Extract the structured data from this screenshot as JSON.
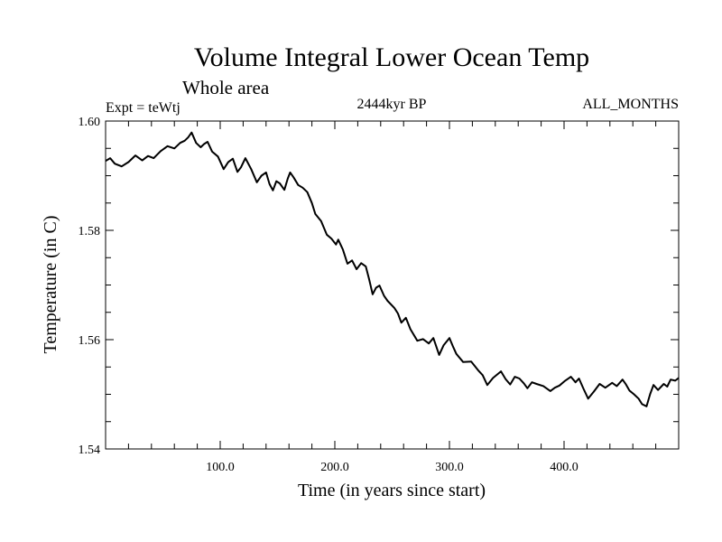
{
  "chart_data": {
    "type": "line",
    "title": "Volume Integral Lower Ocean Temp",
    "subtitle": "Whole area",
    "annotations": {
      "left": "Expt = teWtj",
      "center": "2444kyr BP",
      "right": "ALL_MONTHS"
    },
    "xlabel": "Time (in years since start)",
    "ylabel": "Temperature (in C)",
    "xlim": [
      0,
      500
    ],
    "ylim": [
      1.54,
      1.6
    ],
    "x_major_ticks": [
      100,
      200,
      300,
      400
    ],
    "x_tick_labels": [
      "100.0",
      "200.0",
      "300.0",
      "400.0"
    ],
    "x_minor_step": 20,
    "y_major_ticks": [
      1.54,
      1.56,
      1.58,
      1.6
    ],
    "y_tick_labels": [
      "1.54",
      "1.56",
      "1.58",
      "1.60"
    ],
    "y_minor_step": 0.005,
    "grid": false,
    "series": [
      {
        "name": "Lower Ocean Temp",
        "color": "#000000",
        "x": [
          0,
          4,
          8,
          14,
          20,
          26,
          32,
          37,
          42,
          48,
          54,
          60,
          65,
          69,
          72,
          75,
          79,
          83,
          86,
          89,
          93,
          98,
          103,
          107,
          111,
          115,
          118,
          122,
          127,
          132,
          136,
          140,
          143,
          146,
          149,
          152,
          156,
          159,
          161,
          164,
          168,
          172,
          176,
          180,
          183,
          188,
          193,
          197,
          201,
          203,
          207,
          211,
          215,
          219,
          223,
          227,
          230,
          233,
          236,
          239,
          243,
          246,
          252,
          255,
          258,
          262,
          266,
          272,
          277,
          282,
          286,
          291,
          295,
          300,
          303,
          306,
          312,
          319,
          325,
          329,
          333,
          338,
          345,
          349,
          353,
          357,
          361,
          365,
          368,
          372,
          376,
          382,
          388,
          392,
          396,
          401,
          406,
          410,
          413,
          417,
          421,
          426,
          431,
          436,
          442,
          446,
          451,
          454,
          457,
          461,
          465,
          468,
          472,
          475,
          478,
          482,
          487,
          490,
          493,
          497,
          500
        ],
        "y": [
          1.5927,
          1.5932,
          1.5922,
          1.5917,
          1.5925,
          1.5937,
          1.5928,
          1.5936,
          1.5932,
          1.5945,
          1.5954,
          1.595,
          1.596,
          1.5964,
          1.597,
          1.5979,
          1.596,
          1.5952,
          1.5958,
          1.5962,
          1.5944,
          1.5935,
          1.5912,
          1.5925,
          1.5931,
          1.5907,
          1.5915,
          1.5932,
          1.5912,
          1.5888,
          1.59,
          1.5906,
          1.5885,
          1.5873,
          1.589,
          1.5886,
          1.5874,
          1.5895,
          1.5906,
          1.5897,
          1.5883,
          1.5878,
          1.587,
          1.585,
          1.583,
          1.5817,
          1.5792,
          1.5785,
          1.5774,
          1.5783,
          1.5765,
          1.5739,
          1.5745,
          1.5729,
          1.574,
          1.5734,
          1.571,
          1.5683,
          1.5695,
          1.5699,
          1.568,
          1.5671,
          1.5658,
          1.5648,
          1.5631,
          1.564,
          1.5619,
          1.5598,
          1.5601,
          1.5593,
          1.5603,
          1.5572,
          1.559,
          1.5603,
          1.5588,
          1.5574,
          1.5559,
          1.556,
          1.5544,
          1.5535,
          1.5517,
          1.553,
          1.5542,
          1.5528,
          1.5518,
          1.5532,
          1.5529,
          1.552,
          1.5511,
          1.5522,
          1.5519,
          1.5515,
          1.5506,
          1.5512,
          1.5516,
          1.5525,
          1.5532,
          1.5522,
          1.5529,
          1.551,
          1.5492,
          1.5505,
          1.5519,
          1.5512,
          1.5521,
          1.5515,
          1.5527,
          1.5518,
          1.5507,
          1.55,
          1.5492,
          1.5482,
          1.5478,
          1.55,
          1.5517,
          1.5508,
          1.5519,
          1.5514,
          1.5527,
          1.5525,
          1.553
        ]
      }
    ]
  }
}
